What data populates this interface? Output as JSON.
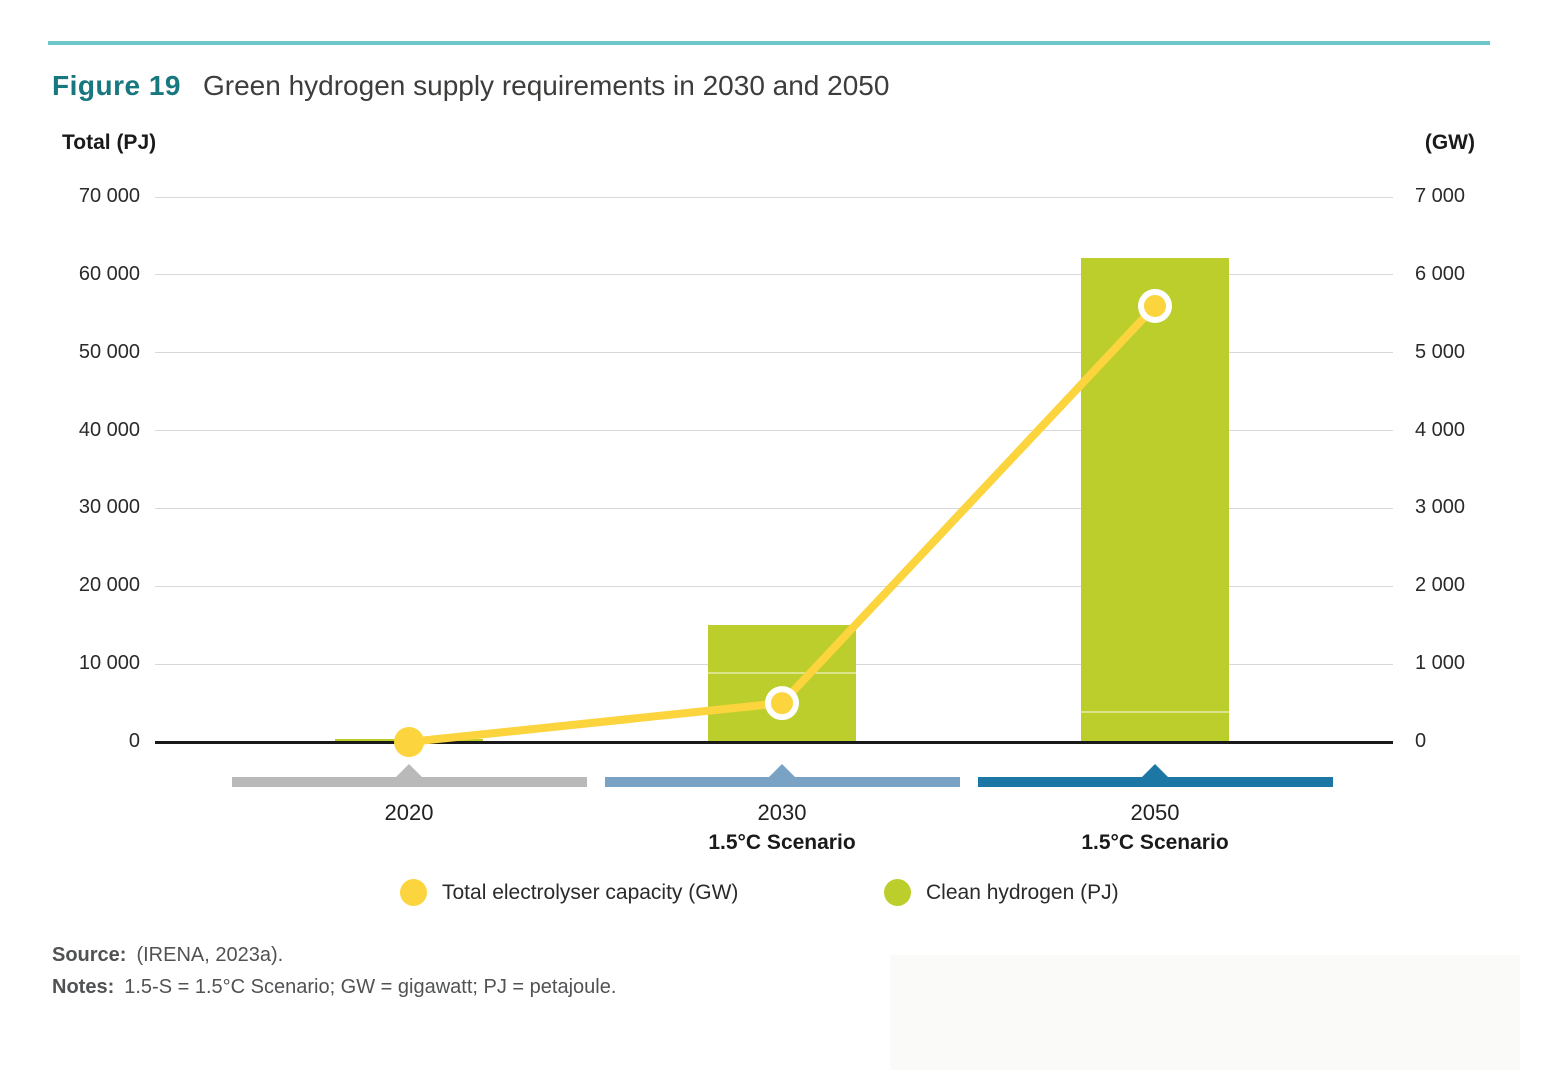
{
  "figure": {
    "label": "Figure 19",
    "title": "Green hydrogen supply requirements in 2030 and 2050"
  },
  "axes": {
    "left": {
      "title": "Total (PJ)",
      "ticks": [
        "70 000",
        "60 000",
        "50 000",
        "40 000",
        "30 000",
        "20 000",
        "10 000",
        "0"
      ]
    },
    "right": {
      "title": "(GW)",
      "ticks": [
        "7 000",
        "6 000",
        "5 000",
        "4 000",
        "3 000",
        "2 000",
        "1 000",
        "0"
      ]
    }
  },
  "chart_data": {
    "type": "bar",
    "title": "Green hydrogen supply requirements in 2030 and 2050",
    "categories": [
      "2020",
      "2030",
      "2050"
    ],
    "category_sublabels": [
      "",
      "1.5°C Scenario",
      "1.5°C Scenario"
    ],
    "series": [
      {
        "name": "Clean hydrogen (PJ)",
        "type": "bar",
        "axis": "left",
        "values": [
          350,
          15000,
          62200
        ]
      },
      {
        "name": "Total electrolyser capacity (GW)",
        "type": "line",
        "axis": "right",
        "values": [
          0,
          500,
          5600
        ]
      }
    ],
    "bar_seams_pj": [
      null,
      9000,
      3950
    ],
    "ylabel_left": "Total (PJ)",
    "ylabel_right": "(GW)",
    "ylim_left": [
      0,
      70000
    ],
    "ylim_right": [
      0,
      7000
    ],
    "grid": true,
    "legend_position": "bottom"
  },
  "categories": [
    {
      "year": "2020",
      "scenario": ""
    },
    {
      "year": "2030",
      "scenario": "1.5°C Scenario"
    },
    {
      "year": "2050",
      "scenario": "1.5°C Scenario"
    }
  ],
  "legend": [
    {
      "label": "Total electrolyser capacity (GW)",
      "color": "#fbd43e"
    },
    {
      "label": "Clean hydrogen (PJ)",
      "color": "#bcce2c"
    }
  ],
  "source": {
    "label": "Source:",
    "text": "(IRENA, 2023a)."
  },
  "notes": {
    "label": "Notes:",
    "text": "1.5-S = 1.5°C Scenario; GW = gigawatt; PJ = petajoule."
  },
  "colors": {
    "accent_teal": "#6dc6cb",
    "figure_label": "#17787f",
    "bar_green": "#bcce2c",
    "line_yellow": "#fbd43e",
    "band_2020": "#b9b9ba",
    "band_2030": "#7aa2c4",
    "band_2050": "#1d77a5",
    "gridline": "#d8d8d8",
    "axis_line": "#1a1a1a"
  }
}
